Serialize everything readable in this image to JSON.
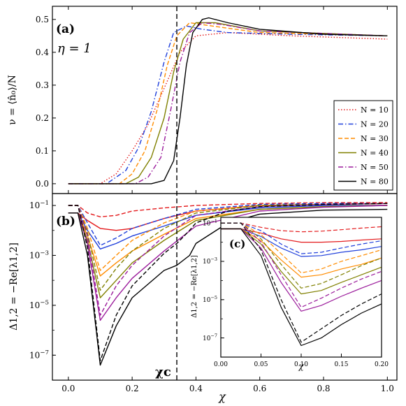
{
  "figure": {
    "chi_c_label": "χc",
    "chi_c_value": 0.34
  },
  "chart_data": [
    {
      "panel": "a",
      "type": "line",
      "panel_label": "(a)",
      "annotation": "η = 1",
      "xlabel": "",
      "ylabel": "ν = ⟨n̂₀⟩/N",
      "xlim": [
        -0.05,
        1.03
      ],
      "ylim": [
        -0.03,
        0.54
      ],
      "yticks": [
        0.0,
        0.1,
        0.2,
        0.3,
        0.4,
        0.5
      ],
      "ytick_labels": [
        "0.0",
        "0.1",
        "0.2",
        "0.3",
        "0.4",
        "0.5"
      ],
      "legend_position": "right",
      "series": [
        {
          "name": "N = 10",
          "color": "#e41a1c",
          "dash": "dotted",
          "x": [
            0.0,
            0.1,
            0.15,
            0.2,
            0.25,
            0.3,
            0.35,
            0.4,
            0.5,
            0.7,
            1.0
          ],
          "y": [
            0.0,
            0.0,
            0.03,
            0.1,
            0.18,
            0.29,
            0.4,
            0.45,
            0.46,
            0.45,
            0.44
          ]
        },
        {
          "name": "N = 20",
          "color": "#1f3fdb",
          "dash": "dashdot",
          "x": [
            0.0,
            0.12,
            0.18,
            0.22,
            0.26,
            0.3,
            0.33,
            0.37,
            0.42,
            0.5,
            0.7,
            1.0
          ],
          "y": [
            0.0,
            0.0,
            0.04,
            0.11,
            0.22,
            0.37,
            0.46,
            0.48,
            0.47,
            0.46,
            0.455,
            0.45
          ]
        },
        {
          "name": "N = 30",
          "color": "#ff8c00",
          "dash": "dashed",
          "x": [
            0.0,
            0.16,
            0.2,
            0.24,
            0.28,
            0.31,
            0.34,
            0.38,
            0.45,
            0.6,
            1.0
          ],
          "y": [
            0.0,
            0.0,
            0.03,
            0.1,
            0.23,
            0.36,
            0.45,
            0.49,
            0.48,
            0.46,
            0.45
          ]
        },
        {
          "name": "N = 40",
          "color": "#808000",
          "dash": "solid",
          "x": [
            0.0,
            0.18,
            0.22,
            0.26,
            0.3,
            0.33,
            0.36,
            0.4,
            0.46,
            0.6,
            1.0
          ],
          "y": [
            0.0,
            0.0,
            0.02,
            0.08,
            0.2,
            0.34,
            0.44,
            0.49,
            0.49,
            0.465,
            0.45
          ]
        },
        {
          "name": "N = 50",
          "color": "#9b1b9b",
          "dash": "dashdot",
          "x": [
            0.0,
            0.21,
            0.25,
            0.29,
            0.32,
            0.35,
            0.38,
            0.42,
            0.48,
            0.6,
            1.0
          ],
          "y": [
            0.0,
            0.0,
            0.02,
            0.08,
            0.22,
            0.37,
            0.46,
            0.49,
            0.485,
            0.465,
            0.45
          ]
        },
        {
          "name": "N = 80",
          "color": "#000000",
          "dash": "solid",
          "x": [
            0.0,
            0.26,
            0.3,
            0.33,
            0.35,
            0.37,
            0.39,
            0.42,
            0.44,
            0.5,
            0.6,
            0.8,
            1.0
          ],
          "y": [
            0.0,
            0.0,
            0.01,
            0.07,
            0.2,
            0.36,
            0.46,
            0.5,
            0.505,
            0.49,
            0.47,
            0.455,
            0.45
          ]
        }
      ]
    },
    {
      "panel": "b",
      "type": "line",
      "panel_label": "(b)",
      "xlabel": "χ",
      "ylabel": "Δ1,2 = −Re[λ1,2]",
      "xscale": "linear",
      "yscale": "log",
      "xlim": [
        -0.05,
        1.03
      ],
      "ylim": [
        1e-08,
        0.3
      ],
      "xticks": [
        0.0,
        0.2,
        0.4,
        0.6,
        0.8,
        1.0
      ],
      "xtick_labels": [
        "0.0",
        "0.2",
        "0.4",
        "0.6",
        "0.8",
        "1.0"
      ],
      "yticks": [
        0.1,
        0.001,
        1e-05,
        1e-07
      ],
      "ytick_labels": [
        "10^-1",
        "10^-3",
        "10^-5",
        "10^-7"
      ],
      "series": [
        {
          "name": "",
          "color": "#e41a1c",
          "dash": "solid",
          "x": [
            0.0,
            0.03,
            0.06,
            0.1,
            0.15,
            0.2,
            0.3,
            0.4,
            0.6,
            0.8,
            1.0
          ],
          "y": [
            0.05,
            0.05,
            0.025,
            0.012,
            0.01,
            0.012,
            0.03,
            0.06,
            0.1,
            0.11,
            0.12
          ]
        },
        {
          "name": "",
          "color": "#e41a1c",
          "dash": "dashed",
          "x": [
            0.0,
            0.03,
            0.06,
            0.1,
            0.15,
            0.2,
            0.3,
            0.4,
            0.6,
            0.8,
            1.0
          ],
          "y": [
            0.1,
            0.1,
            0.05,
            0.035,
            0.04,
            0.06,
            0.08,
            0.1,
            0.12,
            0.13,
            0.13
          ]
        },
        {
          "name": "",
          "color": "#1f3fdb",
          "dash": "solid",
          "x": [
            0.0,
            0.03,
            0.06,
            0.1,
            0.15,
            0.2,
            0.3,
            0.4,
            0.6,
            0.8,
            1.0
          ],
          "y": [
            0.05,
            0.05,
            0.01,
            0.0018,
            0.003,
            0.006,
            0.015,
            0.04,
            0.08,
            0.1,
            0.1
          ]
        },
        {
          "name": "",
          "color": "#1f3fdb",
          "dash": "dashed",
          "x": [
            0.0,
            0.03,
            0.06,
            0.1,
            0.15,
            0.2,
            0.3,
            0.4,
            0.6,
            0.8,
            1.0
          ],
          "y": [
            0.1,
            0.1,
            0.02,
            0.0025,
            0.005,
            0.012,
            0.03,
            0.07,
            0.11,
            0.12,
            0.12
          ]
        },
        {
          "name": "",
          "color": "#ff8c00",
          "dash": "solid",
          "x": [
            0.0,
            0.03,
            0.06,
            0.1,
            0.15,
            0.2,
            0.3,
            0.4,
            0.6,
            0.8,
            1.0
          ],
          "y": [
            0.05,
            0.05,
            0.006,
            0.00015,
            0.0005,
            0.0015,
            0.007,
            0.03,
            0.07,
            0.09,
            0.1
          ]
        },
        {
          "name": "",
          "color": "#ff8c00",
          "dash": "dashed",
          "x": [
            0.0,
            0.03,
            0.06,
            0.1,
            0.15,
            0.2,
            0.3,
            0.4,
            0.6,
            0.8,
            1.0
          ],
          "y": [
            0.1,
            0.1,
            0.012,
            0.00025,
            0.001,
            0.004,
            0.02,
            0.06,
            0.1,
            0.11,
            0.12
          ]
        },
        {
          "name": "",
          "color": "#808000",
          "dash": "solid",
          "x": [
            0.0,
            0.03,
            0.06,
            0.1,
            0.15,
            0.2,
            0.3,
            0.4,
            0.6,
            0.8,
            1.0
          ],
          "y": [
            0.05,
            0.05,
            0.004,
            2e-05,
            0.0001,
            0.0005,
            0.004,
            0.025,
            0.07,
            0.09,
            0.1
          ]
        },
        {
          "name": "",
          "color": "#808000",
          "dash": "dashed",
          "x": [
            0.0,
            0.03,
            0.06,
            0.1,
            0.15,
            0.2,
            0.3,
            0.4,
            0.6,
            0.8,
            1.0
          ],
          "y": [
            0.1,
            0.1,
            0.008,
            4e-05,
            0.0003,
            0.0015,
            0.012,
            0.05,
            0.1,
            0.11,
            0.12
          ]
        },
        {
          "name": "",
          "color": "#9b1b9b",
          "dash": "solid",
          "x": [
            0.0,
            0.03,
            0.06,
            0.1,
            0.15,
            0.2,
            0.3,
            0.4,
            0.6,
            0.8,
            1.0
          ],
          "y": [
            0.05,
            0.05,
            0.003,
            2.5e-06,
            2e-05,
            0.00012,
            0.0015,
            0.015,
            0.06,
            0.085,
            0.1
          ]
        },
        {
          "name": "",
          "color": "#9b1b9b",
          "dash": "dashed",
          "x": [
            0.0,
            0.03,
            0.06,
            0.1,
            0.15,
            0.2,
            0.3,
            0.4,
            0.6,
            0.8,
            1.0
          ],
          "y": [
            0.1,
            0.1,
            0.006,
            4e-06,
            6e-05,
            0.0004,
            0.006,
            0.04,
            0.09,
            0.11,
            0.12
          ]
        },
        {
          "name": "",
          "color": "#000000",
          "dash": "solid",
          "x": [
            0.0,
            0.03,
            0.06,
            0.1,
            0.15,
            0.2,
            0.3,
            0.34,
            0.38,
            0.4,
            0.5,
            0.6,
            0.8,
            1.0
          ],
          "y": [
            0.05,
            0.05,
            0.001,
            4e-08,
            1.5e-06,
            2e-05,
            0.00025,
            0.0004,
            0.001,
            0.003,
            0.02,
            0.045,
            0.065,
            0.07
          ]
        },
        {
          "name": "",
          "color": "#000000",
          "dash": "dashed",
          "x": [
            0.0,
            0.03,
            0.06,
            0.1,
            0.15,
            0.2,
            0.3,
            0.34,
            0.38,
            0.4,
            0.5,
            0.6,
            0.8,
            1.0
          ],
          "y": [
            0.1,
            0.1,
            0.002,
            6e-08,
            4e-06,
            6e-05,
            0.0012,
            0.003,
            0.01,
            0.02,
            0.06,
            0.09,
            0.11,
            0.12
          ]
        }
      ]
    },
    {
      "panel": "c",
      "type": "line",
      "panel_label": "(c)",
      "xlabel": "χ",
      "ylabel": "Δ1,2 = −Re[λ1,2]",
      "xscale": "linear",
      "yscale": "log",
      "xlim": [
        0.0,
        0.2
      ],
      "ylim": [
        1e-08,
        0.2
      ],
      "xticks": [
        0.0,
        0.05,
        0.1,
        0.15,
        0.2
      ],
      "xtick_labels": [
        "0.00",
        "0.05",
        "0.10",
        "0.15",
        "0.20"
      ],
      "yticks": [
        0.1,
        0.001,
        1e-05,
        1e-07
      ],
      "ytick_labels": [
        "10^-1",
        "10^-3",
        "10^-5",
        "10^-7"
      ],
      "series": [
        {
          "name": "",
          "color": "#e41a1c",
          "dash": "solid",
          "x": [
            0.0,
            0.025,
            0.05,
            0.075,
            0.1,
            0.125,
            0.15,
            0.175,
            0.2
          ],
          "y": [
            0.05,
            0.05,
            0.03,
            0.015,
            0.01,
            0.01,
            0.011,
            0.013,
            0.015
          ]
        },
        {
          "name": "",
          "color": "#e41a1c",
          "dash": "dashed",
          "x": [
            0.0,
            0.025,
            0.05,
            0.075,
            0.1,
            0.125,
            0.15,
            0.175,
            0.2
          ],
          "y": [
            0.1,
            0.1,
            0.06,
            0.04,
            0.035,
            0.038,
            0.045,
            0.055,
            0.065
          ]
        },
        {
          "name": "",
          "color": "#1f3fdb",
          "dash": "solid",
          "x": [
            0.0,
            0.025,
            0.05,
            0.075,
            0.1,
            0.125,
            0.15,
            0.175,
            0.2
          ],
          "y": [
            0.05,
            0.05,
            0.02,
            0.005,
            0.0018,
            0.002,
            0.003,
            0.004,
            0.006
          ]
        },
        {
          "name": "",
          "color": "#1f3fdb",
          "dash": "dashed",
          "x": [
            0.0,
            0.025,
            0.05,
            0.075,
            0.1,
            0.125,
            0.15,
            0.175,
            0.2
          ],
          "y": [
            0.1,
            0.1,
            0.04,
            0.008,
            0.0025,
            0.003,
            0.005,
            0.008,
            0.012
          ]
        },
        {
          "name": "",
          "color": "#ff8c00",
          "dash": "solid",
          "x": [
            0.0,
            0.025,
            0.05,
            0.075,
            0.1,
            0.125,
            0.15,
            0.175,
            0.2
          ],
          "y": [
            0.05,
            0.05,
            0.012,
            0.0012,
            0.00015,
            0.0002,
            0.0004,
            0.0007,
            0.0015
          ]
        },
        {
          "name": "",
          "color": "#ff8c00",
          "dash": "dashed",
          "x": [
            0.0,
            0.025,
            0.05,
            0.075,
            0.1,
            0.125,
            0.15,
            0.175,
            0.2
          ],
          "y": [
            0.1,
            0.1,
            0.025,
            0.0025,
            0.00025,
            0.0004,
            0.001,
            0.002,
            0.004
          ]
        },
        {
          "name": "",
          "color": "#808000",
          "dash": "solid",
          "x": [
            0.0,
            0.025,
            0.05,
            0.075,
            0.1,
            0.125,
            0.15,
            0.175,
            0.2
          ],
          "y": [
            0.05,
            0.05,
            0.008,
            0.0003,
            2e-05,
            3e-05,
            8e-05,
            0.0002,
            0.0005
          ]
        },
        {
          "name": "",
          "color": "#808000",
          "dash": "dashed",
          "x": [
            0.0,
            0.025,
            0.05,
            0.075,
            0.1,
            0.125,
            0.15,
            0.175,
            0.2
          ],
          "y": [
            0.1,
            0.1,
            0.015,
            0.0007,
            4e-05,
            7e-05,
            0.0002,
            0.0006,
            0.0015
          ]
        },
        {
          "name": "",
          "color": "#9b1b9b",
          "dash": "solid",
          "x": [
            0.0,
            0.025,
            0.05,
            0.075,
            0.1,
            0.125,
            0.15,
            0.175,
            0.2
          ],
          "y": [
            0.05,
            0.05,
            0.005,
            8e-05,
            2.5e-06,
            5e-06,
            1.5e-05,
            4e-05,
            0.0001
          ]
        },
        {
          "name": "",
          "color": "#9b1b9b",
          "dash": "dashed",
          "x": [
            0.0,
            0.025,
            0.05,
            0.075,
            0.1,
            0.125,
            0.15,
            0.175,
            0.2
          ],
          "y": [
            0.1,
            0.1,
            0.01,
            0.0002,
            4e-06,
            1.2e-05,
            4e-05,
            0.00012,
            0.0003
          ]
        },
        {
          "name": "",
          "color": "#000000",
          "dash": "solid",
          "x": [
            0.0,
            0.025,
            0.05,
            0.075,
            0.1,
            0.125,
            0.15,
            0.175,
            0.2
          ],
          "y": [
            0.05,
            0.05,
            0.002,
            4e-06,
            4e-08,
            1e-07,
            5e-07,
            2e-06,
            6e-06
          ]
        },
        {
          "name": "",
          "color": "#000000",
          "dash": "dashed",
          "x": [
            0.0,
            0.025,
            0.05,
            0.075,
            0.1,
            0.125,
            0.15,
            0.175,
            0.2
          ],
          "y": [
            0.1,
            0.1,
            0.004,
            1e-05,
            6e-08,
            3e-07,
            1.5e-06,
            6e-06,
            2e-05
          ]
        }
      ]
    }
  ]
}
